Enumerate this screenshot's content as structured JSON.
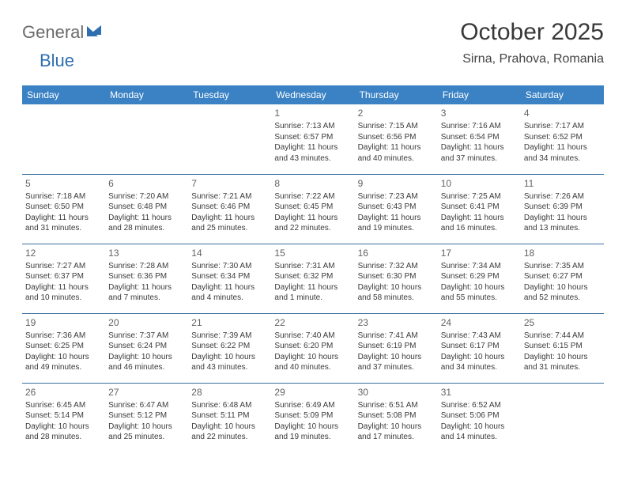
{
  "brand": {
    "part1": "General",
    "part2": "Blue"
  },
  "title": "October 2025",
  "location": "Sirna, Prahova, Romania",
  "colors": {
    "header_bg": "#3b82c4",
    "header_text": "#ffffff",
    "rule": "#3b6fa0",
    "logo_gray": "#6b6b6b",
    "logo_blue": "#2f6fb0",
    "body_text": "#3a3a3a"
  },
  "weekdays": [
    "Sunday",
    "Monday",
    "Tuesday",
    "Wednesday",
    "Thursday",
    "Friday",
    "Saturday"
  ],
  "weeks": [
    [
      null,
      null,
      null,
      {
        "n": "1",
        "sr": "Sunrise: 7:13 AM",
        "ss": "Sunset: 6:57 PM",
        "dl": "Daylight: 11 hours and 43 minutes."
      },
      {
        "n": "2",
        "sr": "Sunrise: 7:15 AM",
        "ss": "Sunset: 6:56 PM",
        "dl": "Daylight: 11 hours and 40 minutes."
      },
      {
        "n": "3",
        "sr": "Sunrise: 7:16 AM",
        "ss": "Sunset: 6:54 PM",
        "dl": "Daylight: 11 hours and 37 minutes."
      },
      {
        "n": "4",
        "sr": "Sunrise: 7:17 AM",
        "ss": "Sunset: 6:52 PM",
        "dl": "Daylight: 11 hours and 34 minutes."
      }
    ],
    [
      {
        "n": "5",
        "sr": "Sunrise: 7:18 AM",
        "ss": "Sunset: 6:50 PM",
        "dl": "Daylight: 11 hours and 31 minutes."
      },
      {
        "n": "6",
        "sr": "Sunrise: 7:20 AM",
        "ss": "Sunset: 6:48 PM",
        "dl": "Daylight: 11 hours and 28 minutes."
      },
      {
        "n": "7",
        "sr": "Sunrise: 7:21 AM",
        "ss": "Sunset: 6:46 PM",
        "dl": "Daylight: 11 hours and 25 minutes."
      },
      {
        "n": "8",
        "sr": "Sunrise: 7:22 AM",
        "ss": "Sunset: 6:45 PM",
        "dl": "Daylight: 11 hours and 22 minutes."
      },
      {
        "n": "9",
        "sr": "Sunrise: 7:23 AM",
        "ss": "Sunset: 6:43 PM",
        "dl": "Daylight: 11 hours and 19 minutes."
      },
      {
        "n": "10",
        "sr": "Sunrise: 7:25 AM",
        "ss": "Sunset: 6:41 PM",
        "dl": "Daylight: 11 hours and 16 minutes."
      },
      {
        "n": "11",
        "sr": "Sunrise: 7:26 AM",
        "ss": "Sunset: 6:39 PM",
        "dl": "Daylight: 11 hours and 13 minutes."
      }
    ],
    [
      {
        "n": "12",
        "sr": "Sunrise: 7:27 AM",
        "ss": "Sunset: 6:37 PM",
        "dl": "Daylight: 11 hours and 10 minutes."
      },
      {
        "n": "13",
        "sr": "Sunrise: 7:28 AM",
        "ss": "Sunset: 6:36 PM",
        "dl": "Daylight: 11 hours and 7 minutes."
      },
      {
        "n": "14",
        "sr": "Sunrise: 7:30 AM",
        "ss": "Sunset: 6:34 PM",
        "dl": "Daylight: 11 hours and 4 minutes."
      },
      {
        "n": "15",
        "sr": "Sunrise: 7:31 AM",
        "ss": "Sunset: 6:32 PM",
        "dl": "Daylight: 11 hours and 1 minute."
      },
      {
        "n": "16",
        "sr": "Sunrise: 7:32 AM",
        "ss": "Sunset: 6:30 PM",
        "dl": "Daylight: 10 hours and 58 minutes."
      },
      {
        "n": "17",
        "sr": "Sunrise: 7:34 AM",
        "ss": "Sunset: 6:29 PM",
        "dl": "Daylight: 10 hours and 55 minutes."
      },
      {
        "n": "18",
        "sr": "Sunrise: 7:35 AM",
        "ss": "Sunset: 6:27 PM",
        "dl": "Daylight: 10 hours and 52 minutes."
      }
    ],
    [
      {
        "n": "19",
        "sr": "Sunrise: 7:36 AM",
        "ss": "Sunset: 6:25 PM",
        "dl": "Daylight: 10 hours and 49 minutes."
      },
      {
        "n": "20",
        "sr": "Sunrise: 7:37 AM",
        "ss": "Sunset: 6:24 PM",
        "dl": "Daylight: 10 hours and 46 minutes."
      },
      {
        "n": "21",
        "sr": "Sunrise: 7:39 AM",
        "ss": "Sunset: 6:22 PM",
        "dl": "Daylight: 10 hours and 43 minutes."
      },
      {
        "n": "22",
        "sr": "Sunrise: 7:40 AM",
        "ss": "Sunset: 6:20 PM",
        "dl": "Daylight: 10 hours and 40 minutes."
      },
      {
        "n": "23",
        "sr": "Sunrise: 7:41 AM",
        "ss": "Sunset: 6:19 PM",
        "dl": "Daylight: 10 hours and 37 minutes."
      },
      {
        "n": "24",
        "sr": "Sunrise: 7:43 AM",
        "ss": "Sunset: 6:17 PM",
        "dl": "Daylight: 10 hours and 34 minutes."
      },
      {
        "n": "25",
        "sr": "Sunrise: 7:44 AM",
        "ss": "Sunset: 6:15 PM",
        "dl": "Daylight: 10 hours and 31 minutes."
      }
    ],
    [
      {
        "n": "26",
        "sr": "Sunrise: 6:45 AM",
        "ss": "Sunset: 5:14 PM",
        "dl": "Daylight: 10 hours and 28 minutes."
      },
      {
        "n": "27",
        "sr": "Sunrise: 6:47 AM",
        "ss": "Sunset: 5:12 PM",
        "dl": "Daylight: 10 hours and 25 minutes."
      },
      {
        "n": "28",
        "sr": "Sunrise: 6:48 AM",
        "ss": "Sunset: 5:11 PM",
        "dl": "Daylight: 10 hours and 22 minutes."
      },
      {
        "n": "29",
        "sr": "Sunrise: 6:49 AM",
        "ss": "Sunset: 5:09 PM",
        "dl": "Daylight: 10 hours and 19 minutes."
      },
      {
        "n": "30",
        "sr": "Sunrise: 6:51 AM",
        "ss": "Sunset: 5:08 PM",
        "dl": "Daylight: 10 hours and 17 minutes."
      },
      {
        "n": "31",
        "sr": "Sunrise: 6:52 AM",
        "ss": "Sunset: 5:06 PM",
        "dl": "Daylight: 10 hours and 14 minutes."
      },
      null
    ]
  ]
}
